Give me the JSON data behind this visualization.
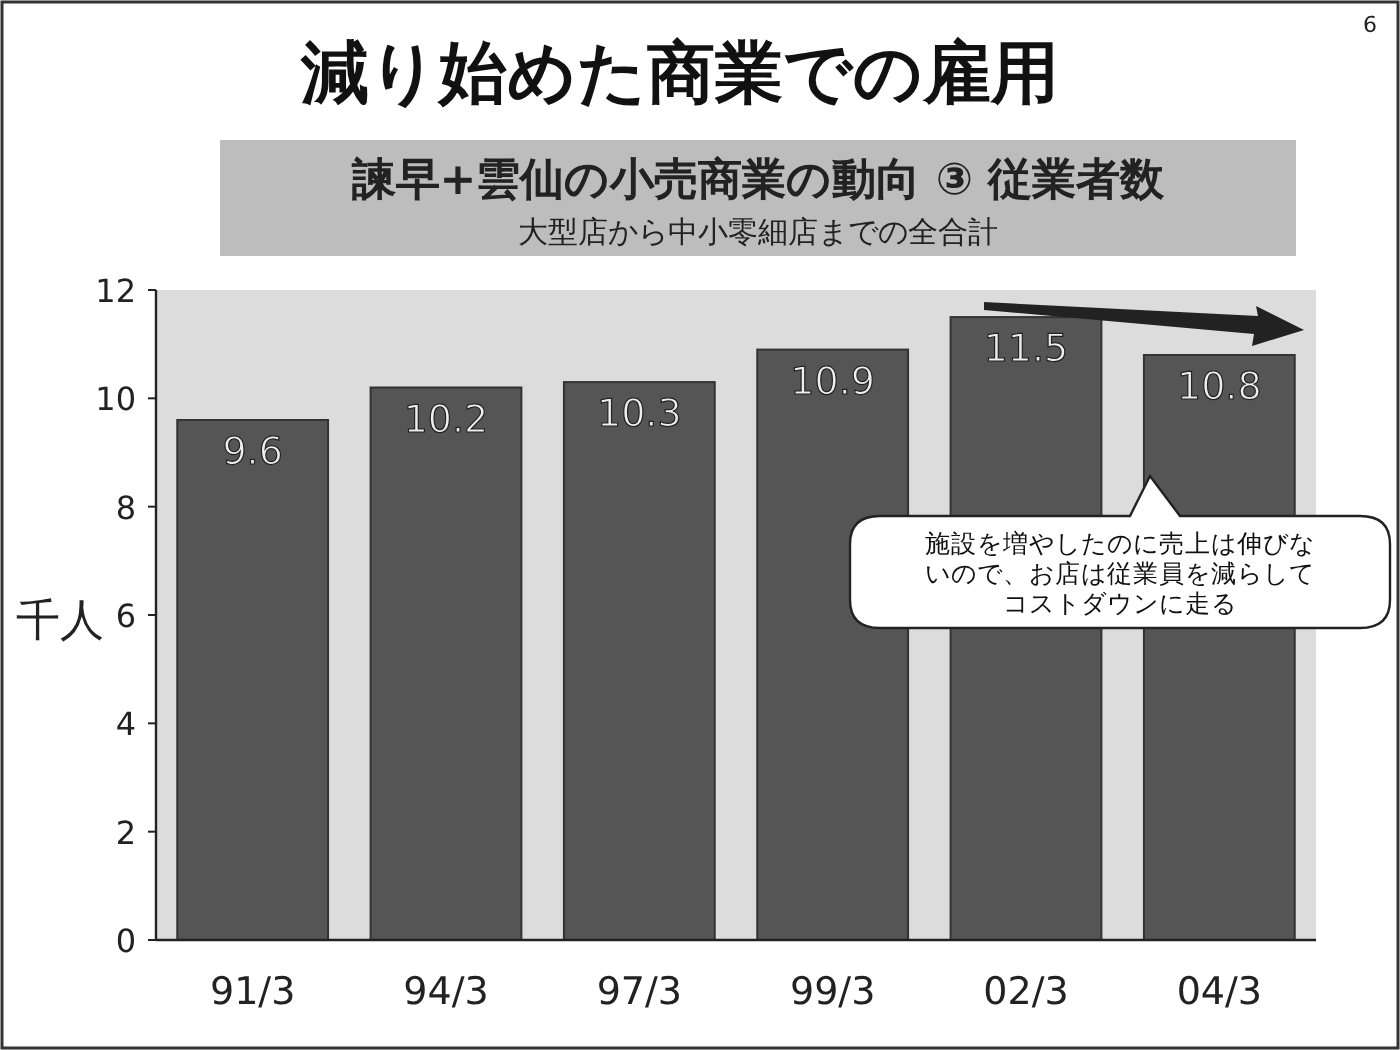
{
  "chart_data": {
    "type": "bar",
    "title": "減り始めた商業での雇用",
    "subtitle": "諫早+雲仙の小売商業の動向 ③ 従業者数",
    "ylabel": "千人",
    "categories": [
      "91/3",
      "94/3",
      "97/3",
      "99/3",
      "02/3",
      "04/3"
    ],
    "values": [
      9.6,
      10.2,
      10.3,
      10.9,
      11.5,
      10.8
    ],
    "color": "#555555",
    "data_labels": true,
    "ylim": [
      0,
      12
    ],
    "yticks": [
      0,
      2,
      4,
      6,
      8,
      10,
      12
    ],
    "grid": false,
    "annotations": [
      "大型店から中小零細店までの全合計",
      "施設を増やしたのに売上は伸びないので、お店は従業員を減らしてコストダウンに走る",
      "6"
    ]
  }
}
